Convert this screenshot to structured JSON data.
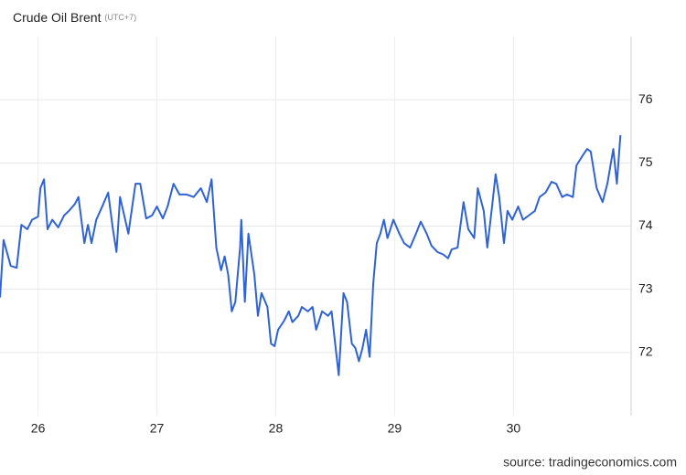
{
  "chart_data": {
    "type": "line",
    "title": "Crude Oil Brent",
    "subtitle": "(UTC+7)",
    "source": "source: tradingeconomics.com",
    "series": [
      {
        "name": "Crude Oil Brent",
        "color": "#2f63d3",
        "x": [
          25.68,
          25.71,
          25.77,
          25.82,
          25.86,
          25.91,
          25.95,
          26.0,
          26.02,
          26.05,
          26.08,
          26.12,
          26.17,
          26.22,
          26.26,
          26.31,
          26.34,
          26.39,
          26.42,
          26.45,
          26.49,
          26.54,
          26.59,
          26.63,
          26.66,
          26.69,
          26.76,
          26.82,
          26.86,
          26.91,
          26.96,
          27.0,
          27.05,
          27.09,
          27.14,
          27.19,
          27.25,
          27.31,
          27.37,
          27.42,
          27.46,
          27.5,
          27.54,
          27.57,
          27.6,
          27.63,
          27.66,
          27.7,
          27.71,
          27.74,
          27.77,
          27.82,
          27.85,
          27.88,
          27.93,
          27.96,
          27.99,
          28.02,
          28.07,
          28.11,
          28.14,
          28.19,
          28.22,
          28.27,
          28.31,
          28.34,
          28.39,
          28.44,
          28.47,
          28.5,
          28.53,
          28.57,
          28.6,
          28.64,
          28.67,
          28.7,
          28.73,
          28.76,
          28.79,
          28.82,
          28.85,
          28.88,
          28.91,
          28.94,
          28.99,
          29.04,
          29.08,
          29.13,
          29.18,
          29.22,
          29.27,
          29.31,
          29.36,
          29.41,
          29.45,
          29.48,
          29.53,
          29.58,
          29.62,
          29.67,
          29.7,
          29.75,
          29.78,
          29.82,
          29.85,
          29.88,
          29.92,
          29.95,
          29.99,
          30.04,
          30.08,
          30.13,
          30.18,
          30.22,
          30.27,
          30.32,
          30.36,
          30.41,
          30.45,
          30.5,
          30.53,
          30.58,
          30.62,
          30.65,
          30.7,
          30.75,
          30.79,
          30.84,
          30.87,
          30.9
        ],
        "values": [
          72.87,
          73.78,
          73.37,
          73.34,
          74.02,
          73.95,
          74.1,
          74.15,
          74.6,
          74.74,
          73.95,
          74.1,
          73.98,
          74.17,
          74.24,
          74.35,
          74.46,
          73.73,
          74.02,
          73.73,
          74.1,
          74.31,
          74.53,
          73.95,
          73.59,
          74.46,
          73.88,
          74.67,
          74.67,
          74.12,
          74.17,
          74.31,
          74.12,
          74.31,
          74.67,
          74.5,
          74.5,
          74.46,
          74.6,
          74.38,
          74.74,
          73.66,
          73.3,
          73.52,
          73.23,
          72.65,
          72.8,
          73.66,
          74.1,
          72.8,
          73.88,
          73.23,
          72.58,
          72.94,
          72.72,
          72.14,
          72.1,
          72.36,
          72.5,
          72.65,
          72.48,
          72.58,
          72.72,
          72.65,
          72.72,
          72.36,
          72.65,
          72.58,
          72.65,
          72.14,
          71.64,
          72.94,
          72.8,
          72.14,
          72.07,
          71.86,
          72.07,
          72.36,
          71.93,
          73.08,
          73.73,
          73.88,
          74.1,
          73.81,
          74.1,
          73.88,
          73.73,
          73.66,
          73.88,
          74.07,
          73.88,
          73.69,
          73.59,
          73.55,
          73.49,
          73.63,
          73.66,
          74.38,
          73.95,
          73.81,
          74.6,
          74.24,
          73.66,
          74.31,
          74.82,
          74.46,
          73.73,
          74.24,
          74.1,
          74.31,
          74.1,
          74.17,
          74.24,
          74.46,
          74.53,
          74.7,
          74.67,
          74.46,
          74.5,
          74.46,
          74.96,
          75.11,
          75.22,
          75.18,
          74.6,
          74.38,
          74.67,
          75.22,
          74.67,
          75.44
        ]
      }
    ],
    "xlim": [
      25.68,
      30.99
    ],
    "xticks": [
      26,
      27,
      28,
      29,
      30
    ],
    "ylim": [
      71,
      77
    ],
    "yticks": [
      72,
      73,
      74,
      75,
      76
    ],
    "grid": true
  }
}
